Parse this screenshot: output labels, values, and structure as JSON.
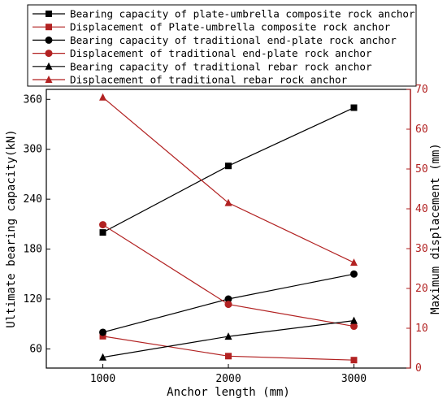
{
  "chart_data": {
    "type": "line",
    "xlabel": "Anchor length (mm)",
    "ylabel_left": "Ultimate bearing capacity(kN)",
    "ylabel_right": "Maximum displacement (mm)",
    "x": [
      1000,
      2000,
      3000
    ],
    "x_ticks": [
      "1000",
      "2000",
      "3000"
    ],
    "xlim": [
      550,
      3450
    ],
    "ylim_left": [
      37,
      372
    ],
    "y_ticks_left": [
      "60",
      "120",
      "180",
      "240",
      "300",
      "360"
    ],
    "ylim_right": [
      0,
      70
    ],
    "y_ticks_right": [
      "0",
      "10",
      "20",
      "30",
      "40",
      "50",
      "60",
      "70"
    ],
    "grid": false,
    "legend_position": "top (above plot)",
    "series": [
      {
        "name": "Bearing capacity of plate-umbrella composite rock anchor",
        "axis": "left",
        "marker": "square",
        "color": "#000000",
        "values": [
          200,
          280,
          350
        ]
      },
      {
        "name": "Displacement of Plate-umbrella composite rock anchor",
        "axis": "right",
        "marker": "square",
        "color": "#b22222",
        "values": [
          8,
          3,
          2
        ]
      },
      {
        "name": "Bearing capacity of traditional end-plate rock anchor",
        "axis": "left",
        "marker": "circle",
        "color": "#000000",
        "values": [
          80,
          120,
          150
        ]
      },
      {
        "name": "Displacement of traditional end-plate rock anchor",
        "axis": "right",
        "marker": "circle",
        "color": "#b22222",
        "values": [
          36,
          16,
          10.5
        ]
      },
      {
        "name": "Bearing capacity of traditional rebar rock anchor",
        "axis": "left",
        "marker": "triangle",
        "color": "#000000",
        "values": [
          50,
          75,
          94
        ]
      },
      {
        "name": "Displacement of traditional rebar rock anchor",
        "axis": "right",
        "marker": "triangle",
        "color": "#b22222",
        "values": [
          68,
          41.5,
          26.5
        ]
      }
    ]
  }
}
